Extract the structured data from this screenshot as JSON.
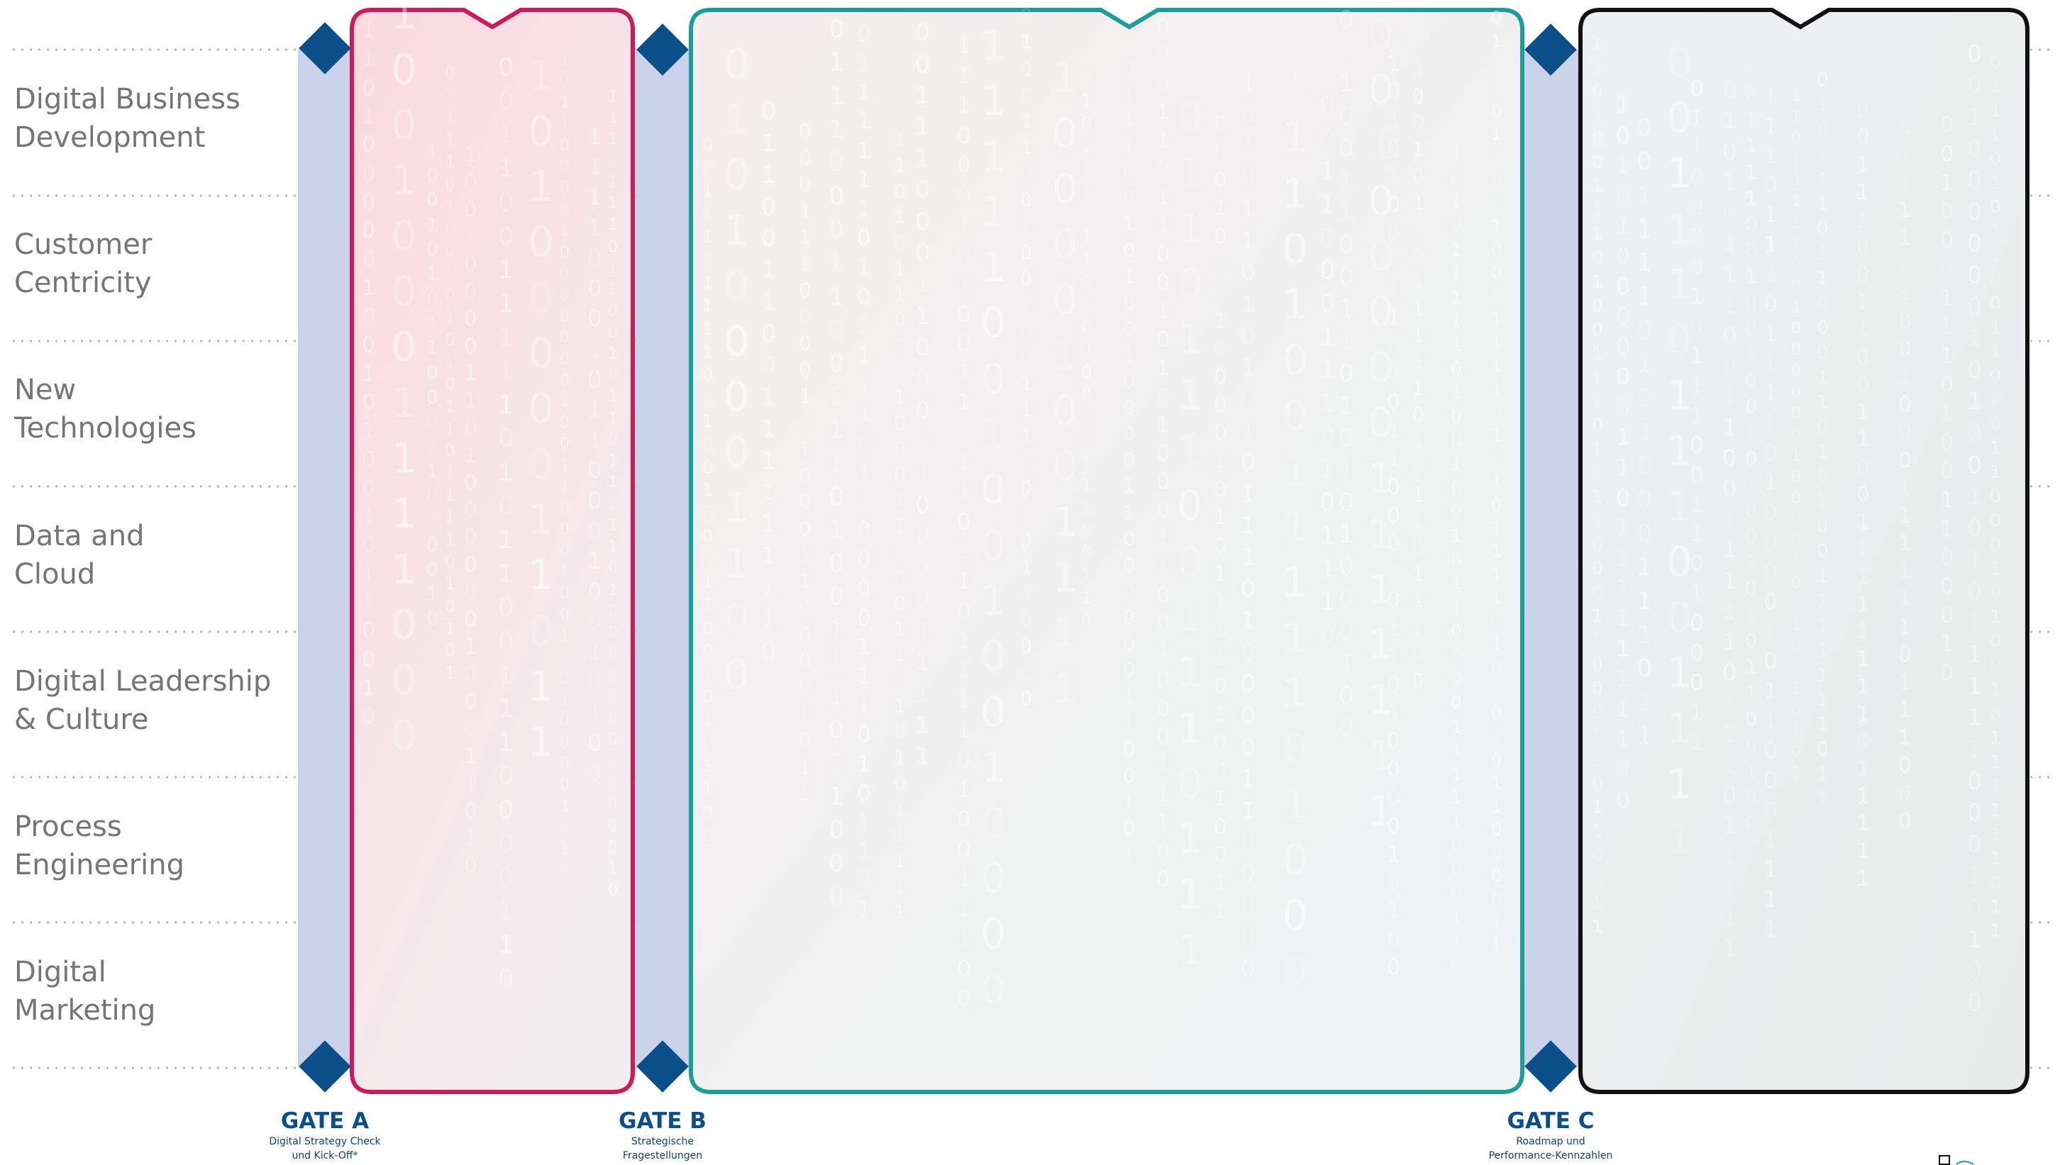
{
  "rows": [
    {
      "label": "Digital Business\nDevelopment"
    },
    {
      "label": "Customer\nCentricity"
    },
    {
      "label": "New\nTechnologies"
    },
    {
      "label": "Data and\nCloud"
    },
    {
      "label": "Digital Leadership\n& Culture"
    },
    {
      "label": "Process\nEngineering"
    },
    {
      "label": "Digital\nMarketing"
    }
  ],
  "gates": [
    {
      "title": "GATE A",
      "subtitle": "Digital Strategy Check\nund Kick-Off*"
    },
    {
      "title": "GATE B",
      "subtitle": "Strategische\nFragestellungen"
    },
    {
      "title": "GATE C",
      "subtitle": "Roadmap und\nPerformance-Kennzahlen"
    }
  ],
  "colors": {
    "gate_band": "#c9d2e8",
    "diamond": "#0b4f8a",
    "phase1_border": "#d0195a",
    "phase2_border": "#1a9e9a",
    "phase3_border": "#111111",
    "row_divider": "#b8b8b8",
    "row_label": "#757575"
  }
}
